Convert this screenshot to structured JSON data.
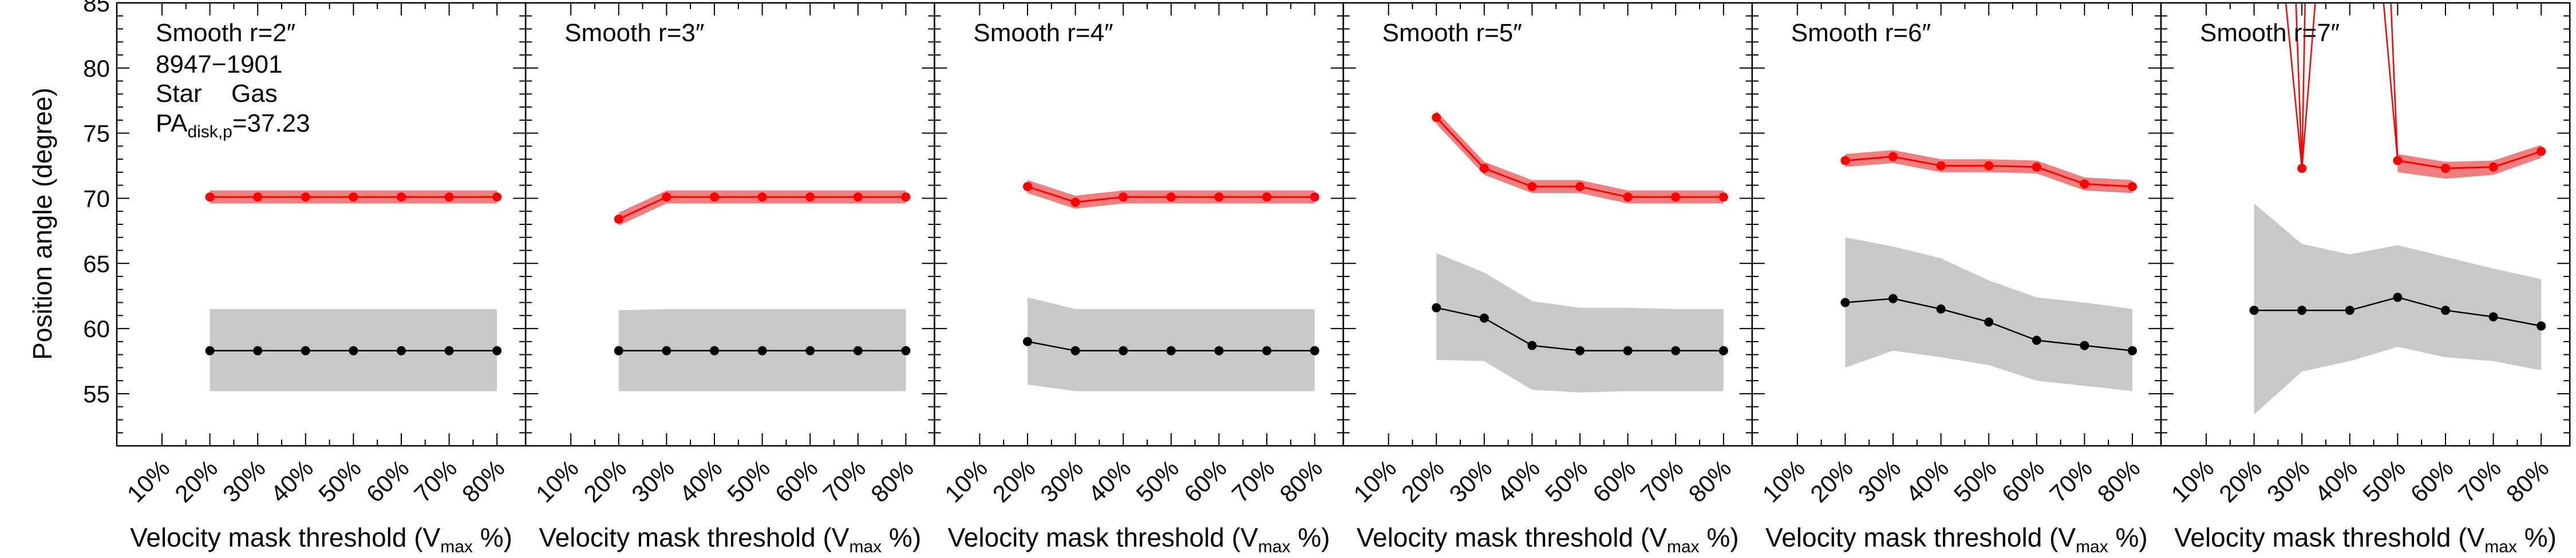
{
  "figure": {
    "ylabel": "Position angle (degree)",
    "xlabel_main": "Velocity mask threshold (V",
    "xlabel_sub": "max",
    "xlabel_tail": " %)",
    "galaxy_id": "8947−1901",
    "legend_star": "Star",
    "legend_gas": "Gas",
    "pa_label_main": "PA",
    "pa_label_sub": "disk,p",
    "pa_label_value": "=37.23",
    "colors": {
      "star_line": "#000000",
      "star_band": "#c8c8c8",
      "gas_line": "#ff0000",
      "gas_band": "#f08080",
      "axes": "#000000"
    }
  },
  "chart_data": [
    {
      "type": "line",
      "title": "Smooth r=2″",
      "categories": [
        "10%",
        "20%",
        "30%",
        "40%",
        "50%",
        "60%",
        "70%",
        "80%"
      ],
      "ylim": [
        51,
        85
      ],
      "yticks": [
        55,
        60,
        65,
        70,
        75,
        80,
        85
      ],
      "series": [
        {
          "name": "Star",
          "x": [
            "20%",
            "30%",
            "40%",
            "50%",
            "60%",
            "70%",
            "80%"
          ],
          "values": [
            58.3,
            58.3,
            58.3,
            58.3,
            58.3,
            58.3,
            58.3
          ],
          "band_low": [
            55.2,
            55.2,
            55.2,
            55.2,
            55.2,
            55.2,
            55.2
          ],
          "band_high": [
            61.5,
            61.5,
            61.5,
            61.5,
            61.5,
            61.5,
            61.5
          ]
        },
        {
          "name": "Gas",
          "x": [
            "20%",
            "30%",
            "40%",
            "50%",
            "60%",
            "70%",
            "80%"
          ],
          "values": [
            70.1,
            70.1,
            70.1,
            70.1,
            70.1,
            70.1,
            70.1
          ],
          "band_low": [
            69.6,
            69.6,
            69.6,
            69.6,
            69.6,
            69.6,
            69.6
          ],
          "band_high": [
            70.6,
            70.6,
            70.6,
            70.6,
            70.6,
            70.6,
            70.6
          ]
        }
      ]
    },
    {
      "type": "line",
      "title": "Smooth r=3″",
      "categories": [
        "10%",
        "20%",
        "30%",
        "40%",
        "50%",
        "60%",
        "70%",
        "80%"
      ],
      "ylim": [
        51,
        85
      ],
      "yticks": [
        55,
        60,
        65,
        70,
        75,
        80,
        85
      ],
      "series": [
        {
          "name": "Star",
          "x": [
            "20%",
            "30%",
            "40%",
            "50%",
            "60%",
            "70%",
            "80%"
          ],
          "values": [
            58.3,
            58.3,
            58.3,
            58.3,
            58.3,
            58.3,
            58.3
          ],
          "band_low": [
            55.2,
            55.2,
            55.2,
            55.2,
            55.2,
            55.2,
            55.2
          ],
          "band_high": [
            61.4,
            61.5,
            61.5,
            61.5,
            61.5,
            61.5,
            61.5
          ]
        },
        {
          "name": "Gas",
          "x": [
            "20%",
            "30%",
            "40%",
            "50%",
            "60%",
            "70%",
            "80%"
          ],
          "values": [
            68.4,
            70.1,
            70.1,
            70.1,
            70.1,
            70.1,
            70.1
          ],
          "band_low": [
            67.9,
            69.6,
            69.6,
            69.6,
            69.6,
            69.6,
            69.6
          ],
          "band_high": [
            68.9,
            70.6,
            70.6,
            70.6,
            70.6,
            70.6,
            70.6
          ]
        }
      ]
    },
    {
      "type": "line",
      "title": "Smooth r=4″",
      "categories": [
        "10%",
        "20%",
        "30%",
        "40%",
        "50%",
        "60%",
        "70%",
        "80%"
      ],
      "ylim": [
        51,
        85
      ],
      "yticks": [
        55,
        60,
        65,
        70,
        75,
        80,
        85
      ],
      "series": [
        {
          "name": "Star",
          "x": [
            "20%",
            "30%",
            "40%",
            "50%",
            "60%",
            "70%",
            "80%"
          ],
          "values": [
            59.0,
            58.3,
            58.3,
            58.3,
            58.3,
            58.3,
            58.3
          ],
          "band_low": [
            55.7,
            55.2,
            55.2,
            55.2,
            55.2,
            55.2,
            55.2
          ],
          "band_high": [
            62.4,
            61.5,
            61.5,
            61.5,
            61.5,
            61.5,
            61.5
          ]
        },
        {
          "name": "Gas",
          "x": [
            "20%",
            "30%",
            "40%",
            "50%",
            "60%",
            "70%",
            "80%"
          ],
          "values": [
            70.9,
            69.7,
            70.1,
            70.1,
            70.1,
            70.1,
            70.1
          ],
          "band_low": [
            70.4,
            69.2,
            69.6,
            69.6,
            69.6,
            69.6,
            69.6
          ],
          "band_high": [
            71.4,
            70.2,
            70.6,
            70.6,
            70.6,
            70.6,
            70.6
          ]
        }
      ]
    },
    {
      "type": "line",
      "title": "Smooth r=5″",
      "categories": [
        "10%",
        "20%",
        "30%",
        "40%",
        "50%",
        "60%",
        "70%",
        "80%"
      ],
      "ylim": [
        51,
        85
      ],
      "yticks": [
        55,
        60,
        65,
        70,
        75,
        80,
        85
      ],
      "series": [
        {
          "name": "Star",
          "x": [
            "20%",
            "30%",
            "40%",
            "50%",
            "60%",
            "70%",
            "80%"
          ],
          "values": [
            61.6,
            60.8,
            58.7,
            58.3,
            58.3,
            58.3,
            58.3
          ],
          "band_low": [
            57.6,
            57.5,
            55.3,
            55.1,
            55.2,
            55.2,
            55.2
          ],
          "band_high": [
            65.8,
            64.3,
            62.1,
            61.6,
            61.6,
            61.5,
            61.5
          ]
        },
        {
          "name": "Gas",
          "x": [
            "20%",
            "30%",
            "40%",
            "50%",
            "60%",
            "70%",
            "80%"
          ],
          "values": [
            76.2,
            72.3,
            70.9,
            70.9,
            70.1,
            70.1,
            70.1
          ],
          "band_low": [
            75.7,
            71.8,
            70.4,
            70.4,
            69.6,
            69.6,
            69.6
          ],
          "band_high": [
            76.7,
            72.8,
            71.4,
            71.4,
            70.6,
            70.6,
            70.6
          ]
        }
      ]
    },
    {
      "type": "line",
      "title": "Smooth r=6″",
      "categories": [
        "10%",
        "20%",
        "30%",
        "40%",
        "50%",
        "60%",
        "70%",
        "80%"
      ],
      "ylim": [
        51,
        85
      ],
      "yticks": [
        55,
        60,
        65,
        70,
        75,
        80,
        85
      ],
      "series": [
        {
          "name": "Star",
          "x": [
            "20%",
            "30%",
            "40%",
            "50%",
            "60%",
            "70%",
            "80%"
          ],
          "values": [
            62.0,
            62.3,
            61.5,
            60.5,
            59.1,
            58.7,
            58.3
          ],
          "band_low": [
            57.0,
            58.3,
            57.8,
            57.2,
            56.0,
            55.6,
            55.2
          ],
          "band_high": [
            67.0,
            66.3,
            65.4,
            63.7,
            62.4,
            62.0,
            61.5
          ]
        },
        {
          "name": "Gas",
          "x": [
            "20%",
            "30%",
            "40%",
            "50%",
            "60%",
            "70%",
            "80%"
          ],
          "values": [
            72.9,
            73.2,
            72.5,
            72.5,
            72.4,
            71.1,
            70.9
          ],
          "band_low": [
            72.4,
            72.7,
            72.0,
            72.0,
            71.9,
            70.6,
            70.4
          ],
          "band_high": [
            73.4,
            73.7,
            73.0,
            73.0,
            72.9,
            71.6,
            71.4
          ]
        }
      ]
    },
    {
      "type": "line",
      "title": "Smooth r=7″",
      "categories": [
        "10%",
        "20%",
        "30%",
        "40%",
        "50%",
        "60%",
        "70%",
        "80%"
      ],
      "ylim": [
        51,
        85
      ],
      "yticks": [
        55,
        60,
        65,
        70,
        75,
        80,
        85
      ],
      "series": [
        {
          "name": "Star",
          "x": [
            "20%",
            "30%",
            "40%",
            "50%",
            "60%",
            "70%",
            "80%"
          ],
          "values": [
            61.4,
            61.4,
            61.4,
            62.4,
            61.4,
            60.9,
            60.2
          ],
          "band_low": [
            53.4,
            56.7,
            57.5,
            58.6,
            57.8,
            57.5,
            56.8
          ],
          "band_high": [
            69.6,
            66.5,
            65.7,
            66.4,
            65.5,
            64.6,
            63.8
          ]
        },
        {
          "name": "Gas",
          "x": [
            "20%",
            "30%",
            "40%",
            "50%",
            "60%",
            "70%",
            "80%"
          ],
          "values": [
            null,
            72.3,
            null,
            72.9,
            72.3,
            72.4,
            73.6
          ],
          "band_low": [
            null,
            71.8,
            null,
            72.0,
            71.5,
            71.8,
            73.1
          ],
          "band_high": [
            null,
            72.8,
            null,
            73.4,
            72.8,
            72.9,
            74.1
          ]
        }
      ],
      "note_lines": "Gas error band lines run off the top of the plot near 20%, 40% and 50%"
    }
  ]
}
